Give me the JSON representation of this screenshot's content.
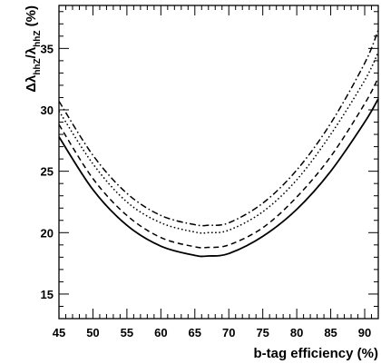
{
  "chart_data": {
    "type": "line",
    "xlabel": "b-tag efficiency (%)",
    "ylabel": {
      "delta": "Δλ",
      "numerator_sub": "hhZ",
      "slash": "/λ",
      "denominator_sub": "hhZ",
      "unit": " (%)"
    },
    "xlim": [
      45,
      92
    ],
    "ylim": [
      13,
      38.5
    ],
    "x_ticks": [
      45,
      50,
      55,
      60,
      65,
      70,
      75,
      80,
      85,
      90
    ],
    "y_ticks": [
      15,
      20,
      25,
      30,
      35
    ],
    "grid": false,
    "series": [
      {
        "style": "solid",
        "color": "#000000",
        "x": [
          45,
          50,
          55,
          60,
          65,
          67,
          70,
          75,
          80,
          85,
          90,
          92
        ],
        "values": [
          27.8,
          23.5,
          20.6,
          18.9,
          18.15,
          18.1,
          18.3,
          19.7,
          21.9,
          25.0,
          29.0,
          30.9
        ]
      },
      {
        "style": "dashed",
        "color": "#000000",
        "x": [
          45,
          50,
          55,
          60,
          65,
          67,
          70,
          75,
          80,
          85,
          90,
          92
        ],
        "values": [
          28.8,
          24.4,
          21.4,
          19.6,
          18.85,
          18.8,
          19.0,
          20.4,
          22.9,
          26.2,
          30.5,
          32.6
        ]
      },
      {
        "style": "dotted",
        "color": "#000000",
        "x": [
          45,
          50,
          55,
          60,
          65,
          67,
          70,
          75,
          80,
          85,
          90,
          92
        ],
        "values": [
          29.9,
          25.6,
          22.5,
          20.8,
          20.05,
          20.0,
          20.2,
          21.7,
          24.3,
          28.0,
          32.4,
          34.7
        ]
      },
      {
        "style": "dash-dot",
        "color": "#000000",
        "x": [
          45,
          50,
          55,
          60,
          65,
          67,
          70,
          75,
          80,
          85,
          90,
          92
        ],
        "values": [
          30.7,
          26.3,
          23.2,
          21.4,
          20.65,
          20.6,
          20.8,
          22.4,
          25.1,
          28.9,
          33.8,
          36.5
        ]
      }
    ]
  }
}
